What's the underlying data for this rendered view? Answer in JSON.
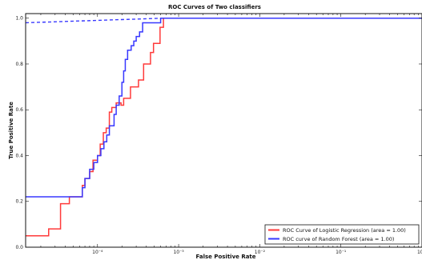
{
  "chart_data": {
    "type": "line",
    "title": "ROC Curves of Two classifiers",
    "xlabel": "False Positive Rate",
    "ylabel": "True Positive Rate",
    "xscale": "log",
    "xlim": [
      1.3e-05,
      1
    ],
    "ylim": [
      0,
      1.02
    ],
    "x_ticks": [
      {
        "value": 0.0001,
        "label": "10⁻⁴"
      },
      {
        "value": 0.001,
        "label": "10⁻³"
      },
      {
        "value": 0.01,
        "label": "10⁻²"
      },
      {
        "value": 0.1,
        "label": "10⁻¹"
      },
      {
        "value": 1,
        "label": "10⁰"
      }
    ],
    "y_ticks": [
      {
        "value": 0.0,
        "label": "0.0"
      },
      {
        "value": 0.2,
        "label": "0.2"
      },
      {
        "value": 0.4,
        "label": "0.4"
      },
      {
        "value": 0.6,
        "label": "0.6"
      },
      {
        "value": 0.8,
        "label": "0.8"
      },
      {
        "value": 1.0,
        "label": "1.0"
      }
    ],
    "grid": false,
    "legend_position": "bottom-right",
    "series": [
      {
        "name": "ROC Curve of Logistic Regression (area = 1.00)",
        "color": "#ff3a3a",
        "style": "step",
        "points": [
          [
            1.3e-05,
            0.05
          ],
          [
            2.5e-05,
            0.05
          ],
          [
            2.5e-05,
            0.08
          ],
          [
            3.5e-05,
            0.08
          ],
          [
            3.5e-05,
            0.19
          ],
          [
            4.5e-05,
            0.19
          ],
          [
            4.5e-05,
            0.22
          ],
          [
            6.5e-05,
            0.22
          ],
          [
            6.5e-05,
            0.27
          ],
          [
            7e-05,
            0.27
          ],
          [
            7e-05,
            0.3
          ],
          [
            8e-05,
            0.3
          ],
          [
            8e-05,
            0.33
          ],
          [
            8.8e-05,
            0.33
          ],
          [
            8.8e-05,
            0.38
          ],
          [
            0.0001,
            0.38
          ],
          [
            0.0001,
            0.4
          ],
          [
            0.000108,
            0.4
          ],
          [
            0.000108,
            0.45
          ],
          [
            0.000118,
            0.45
          ],
          [
            0.000118,
            0.5
          ],
          [
            0.000128,
            0.5
          ],
          [
            0.000128,
            0.52
          ],
          [
            0.00014,
            0.52
          ],
          [
            0.00014,
            0.59
          ],
          [
            0.00015,
            0.59
          ],
          [
            0.00015,
            0.61
          ],
          [
            0.00017,
            0.61
          ],
          [
            0.00017,
            0.63
          ],
          [
            0.000195,
            0.63
          ],
          [
            0.000195,
            0.62
          ],
          [
            0.00021,
            0.62
          ],
          [
            0.00021,
            0.65
          ],
          [
            0.000255,
            0.65
          ],
          [
            0.000255,
            0.7
          ],
          [
            0.00032,
            0.7
          ],
          [
            0.00032,
            0.73
          ],
          [
            0.00037,
            0.73
          ],
          [
            0.00037,
            0.8
          ],
          [
            0.00045,
            0.8
          ],
          [
            0.00045,
            0.85
          ],
          [
            0.00049,
            0.85
          ],
          [
            0.00049,
            0.89
          ],
          [
            0.00059,
            0.89
          ],
          [
            0.00059,
            0.96
          ],
          [
            0.00065,
            0.96
          ],
          [
            0.00065,
            1.0
          ],
          [
            1,
            1.0
          ]
        ]
      },
      {
        "name": "ROC curve of Random Forest (area = 1.00)",
        "color": "#3838ff",
        "style": "step",
        "dashed_head": [
          [
            1.3e-05,
            0.98
          ],
          [
            0.00065,
            1.0
          ]
        ],
        "points": [
          [
            1.3e-05,
            0.22
          ],
          [
            6.5e-05,
            0.22
          ],
          [
            6.5e-05,
            0.26
          ],
          [
            7e-05,
            0.26
          ],
          [
            7e-05,
            0.3
          ],
          [
            8e-05,
            0.3
          ],
          [
            8e-05,
            0.34
          ],
          [
            9e-05,
            0.34
          ],
          [
            9e-05,
            0.37
          ],
          [
            0.0001,
            0.37
          ],
          [
            0.0001,
            0.4
          ],
          [
            0.00011,
            0.4
          ],
          [
            0.00011,
            0.43
          ],
          [
            0.00012,
            0.43
          ],
          [
            0.00012,
            0.46
          ],
          [
            0.00013,
            0.46
          ],
          [
            0.00013,
            0.49
          ],
          [
            0.00014,
            0.49
          ],
          [
            0.00014,
            0.53
          ],
          [
            0.00016,
            0.53
          ],
          [
            0.00016,
            0.58
          ],
          [
            0.00017,
            0.58
          ],
          [
            0.00017,
            0.62
          ],
          [
            0.000185,
            0.62
          ],
          [
            0.000185,
            0.66
          ],
          [
            0.0002,
            0.66
          ],
          [
            0.0002,
            0.72
          ],
          [
            0.00021,
            0.72
          ],
          [
            0.00021,
            0.77
          ],
          [
            0.00022,
            0.77
          ],
          [
            0.00022,
            0.82
          ],
          [
            0.000235,
            0.82
          ],
          [
            0.000235,
            0.86
          ],
          [
            0.00026,
            0.86
          ],
          [
            0.00026,
            0.88
          ],
          [
            0.00028,
            0.88
          ],
          [
            0.00028,
            0.9
          ],
          [
            0.0003,
            0.9
          ],
          [
            0.0003,
            0.92
          ],
          [
            0.00033,
            0.92
          ],
          [
            0.00033,
            0.94
          ],
          [
            0.00036,
            0.94
          ],
          [
            0.00036,
            0.98
          ],
          [
            0.0006,
            0.98
          ],
          [
            0.0006,
            1.0
          ],
          [
            1,
            1.0
          ]
        ]
      }
    ]
  }
}
